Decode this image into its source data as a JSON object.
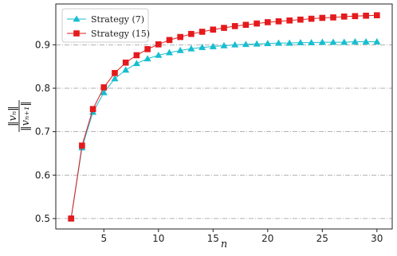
{
  "chart_data": {
    "type": "line",
    "xlabel": "n",
    "ylabel_numerator": "‖vₙ‖",
    "ylabel_denominator": "‖vₙ₊₁‖",
    "x": [
      2,
      3,
      4,
      5,
      6,
      7,
      8,
      9,
      10,
      11,
      12,
      13,
      14,
      15,
      16,
      17,
      18,
      19,
      20,
      21,
      22,
      23,
      24,
      25,
      26,
      27,
      28,
      29,
      30
    ],
    "series": [
      {
        "name": "Strategy (7)",
        "color": "#17becf",
        "marker": "triangle",
        "values": [
          0.5,
          0.663,
          0.745,
          0.79,
          0.822,
          0.842,
          0.857,
          0.868,
          0.876,
          0.882,
          0.887,
          0.891,
          0.894,
          0.896,
          0.898,
          0.9,
          0.901,
          0.902,
          0.903,
          0.904,
          0.904,
          0.905,
          0.905,
          0.906,
          0.906,
          0.906,
          0.907,
          0.907,
          0.907
        ]
      },
      {
        "name": "Strategy (15)",
        "color": "#e41a1c",
        "marker": "square",
        "values": [
          0.5,
          0.668,
          0.752,
          0.802,
          0.835,
          0.859,
          0.876,
          0.89,
          0.901,
          0.911,
          0.918,
          0.925,
          0.93,
          0.935,
          0.939,
          0.943,
          0.946,
          0.949,
          0.952,
          0.954,
          0.956,
          0.958,
          0.96,
          0.962,
          0.963,
          0.965,
          0.966,
          0.967,
          0.968
        ]
      }
    ],
    "xlim": [
      0.6,
      31.4
    ],
    "ylim": [
      0.476,
      0.994
    ],
    "xticks": [
      5,
      10,
      15,
      20,
      25,
      30
    ],
    "yticks": [
      0.5,
      0.6,
      0.7,
      0.8,
      0.9
    ],
    "grid": true,
    "legend": "upper left"
  }
}
